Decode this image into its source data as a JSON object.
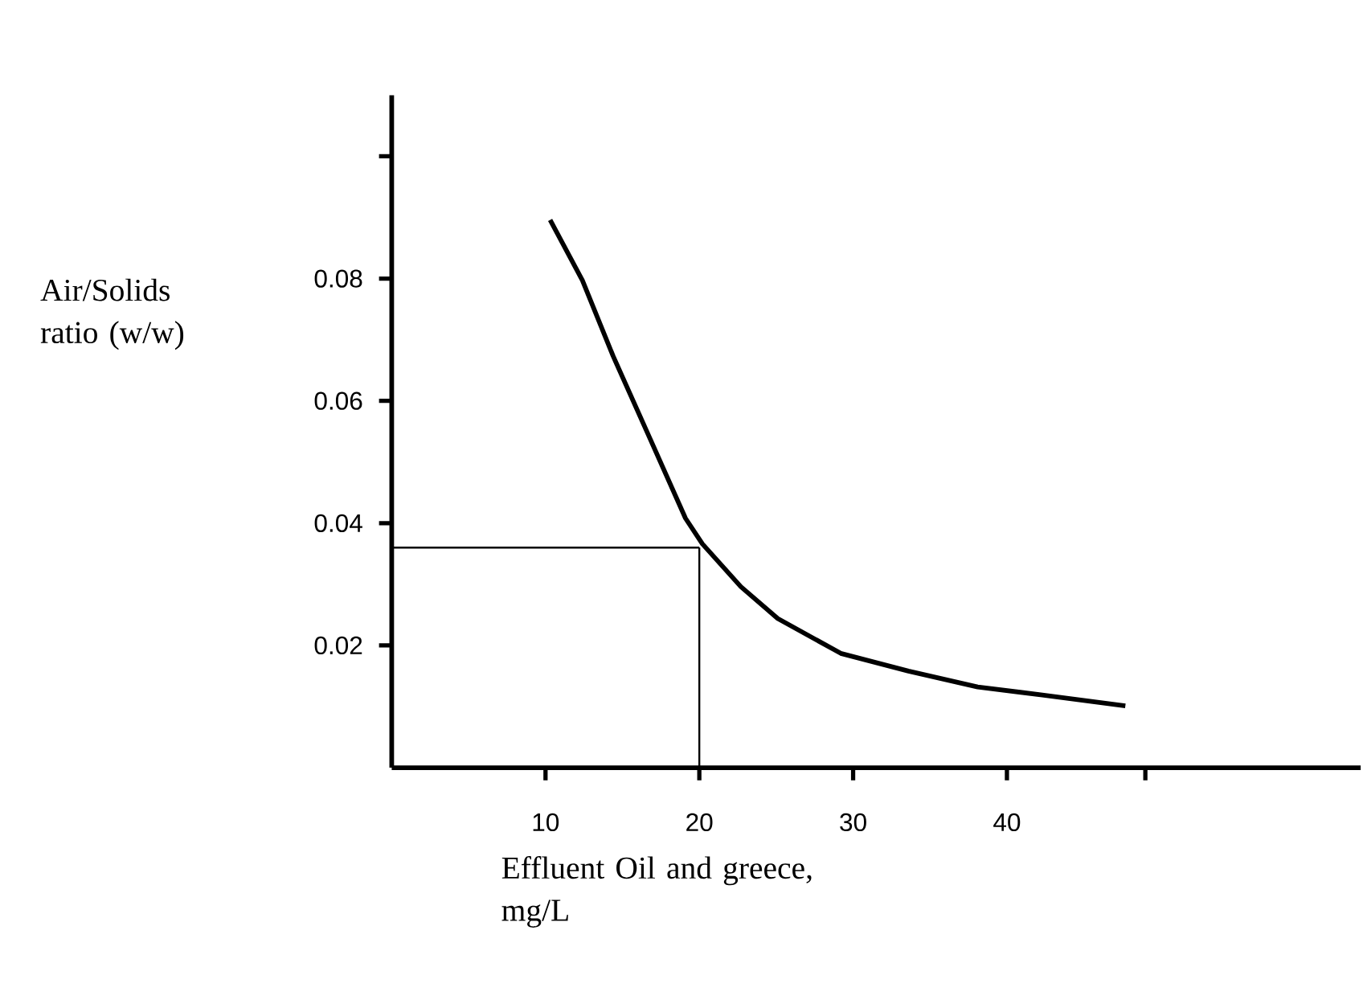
{
  "chart_data": {
    "type": "line",
    "xlabel": "Effluent Oil and greece, mg/L",
    "ylabel": "Air/Solids ratio (w/w)",
    "xlim": [
      0,
      63
    ],
    "ylim": [
      0,
      0.11
    ],
    "xticks": [
      10,
      20,
      30,
      40,
      {
        "value": 49,
        "label": null
      }
    ],
    "yticks": [
      0.02,
      0.04,
      0.06,
      0.08,
      {
        "value": 0.1,
        "label": null
      }
    ],
    "grid": false,
    "marker": "none",
    "line_style": "solid",
    "series": [
      {
        "color": "#000000",
        "x": [
          10.3,
          12.4,
          14.4,
          16.8,
          19.1,
          20.2,
          22.7,
          25.1,
          29.2,
          33.6,
          38.1,
          42.3,
          47.7
        ],
        "values": [
          0.0896,
          0.0797,
          0.0673,
          0.0538,
          0.0408,
          0.0366,
          0.0296,
          0.0244,
          0.0187,
          0.0158,
          0.0132,
          0.0119,
          0.0101
        ]
      }
    ],
    "ref_lines": [
      {
        "axis": "y",
        "value": 0.036,
        "color": "#000000"
      },
      {
        "axis": "x",
        "value": 20,
        "color": "#000000"
      }
    ]
  }
}
